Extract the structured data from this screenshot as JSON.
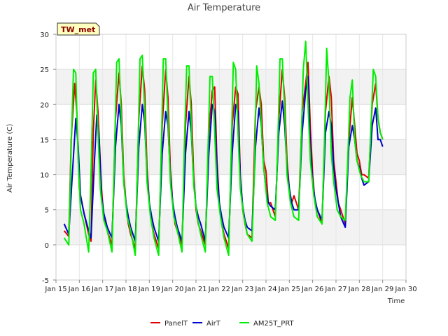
{
  "chart_data": {
    "type": "line",
    "title": "Air Temperature",
    "xlabel": "Time",
    "ylabel": "Air Temperature (C)",
    "station_label": "TW_met",
    "xlim": [
      15,
      30
    ],
    "ylim": [
      -5,
      30
    ],
    "x_ticks": [
      15,
      16,
      17,
      18,
      19,
      20,
      21,
      22,
      23,
      24,
      25,
      26,
      27,
      28,
      29,
      30
    ],
    "x_tick_labels": [
      "Jan 15",
      "Jan 16",
      "Jan 17",
      "Jan 18",
      "Jan 19",
      "Jan 20",
      "Jan 21",
      "Jan 22",
      "Jan 23",
      "Jan 24",
      "Jan 25",
      "Jan 26",
      "Jan 27",
      "Jan 28",
      "Jan 29",
      "Jan 30"
    ],
    "y_ticks": [
      -5,
      0,
      5,
      10,
      15,
      20,
      25,
      30
    ],
    "y_tick_labels": [
      "-5",
      "0",
      "5",
      "10",
      "15",
      "20",
      "25",
      "30"
    ],
    "grid": true,
    "banded_background": true,
    "legend_position": "bottom-center",
    "series": [
      {
        "name": "PanelT",
        "color": "#dd0000",
        "x": [
          15.35,
          15.55,
          15.65,
          15.8,
          15.9,
          16.0,
          16.2,
          16.4,
          16.5,
          16.6,
          16.7,
          16.8,
          16.95,
          17.05,
          17.2,
          17.4,
          17.55,
          17.7,
          17.8,
          17.9,
          18.0,
          18.1,
          18.2,
          18.4,
          18.55,
          18.7,
          18.8,
          18.9,
          19.0,
          19.1,
          19.2,
          19.4,
          19.55,
          19.7,
          19.8,
          19.9,
          20.0,
          20.1,
          20.2,
          20.4,
          20.55,
          20.7,
          20.8,
          20.9,
          21.0,
          21.1,
          21.2,
          21.4,
          21.55,
          21.7,
          21.8,
          21.9,
          22.0,
          22.1,
          22.2,
          22.4,
          22.55,
          22.7,
          22.8,
          22.9,
          23.0,
          23.1,
          23.2,
          23.4,
          23.55,
          23.7,
          23.8,
          23.9,
          24.0,
          24.1,
          24.2,
          24.4,
          24.55,
          24.7,
          24.8,
          24.9,
          25.0,
          25.1,
          25.2,
          25.4,
          25.55,
          25.7,
          25.8,
          25.9,
          26.0,
          26.1,
          26.2,
          26.4,
          26.55,
          26.7,
          26.8,
          26.9,
          27.0,
          27.1,
          27.2,
          27.4,
          27.55,
          27.7,
          27.8,
          27.9,
          28.0,
          28.1,
          28.2,
          28.4,
          28.55,
          28.7,
          28.8,
          28.9,
          29.0
        ],
        "y": [
          2.0,
          1.2,
          15.0,
          23.0,
          18.5,
          8.0,
          4.5,
          1.5,
          0.5,
          16.0,
          23.5,
          19.0,
          8.0,
          4.0,
          2.0,
          0.0,
          18.0,
          24.5,
          20.0,
          10.0,
          6.0,
          3.0,
          1.5,
          -0.5,
          18.0,
          25.5,
          22.0,
          11.0,
          6.0,
          3.0,
          1.5,
          -0.5,
          17.0,
          25.0,
          21.0,
          11.0,
          6.0,
          3.0,
          2.0,
          0.0,
          17.0,
          24.0,
          20.0,
          10.0,
          5.0,
          3.0,
          2.0,
          0.0,
          16.0,
          22.0,
          22.5,
          12.0,
          6.0,
          3.0,
          1.5,
          -0.5,
          17.0,
          22.5,
          21.5,
          10.0,
          5.0,
          3.0,
          1.5,
          1.0,
          19.0,
          22.5,
          20.0,
          12.0,
          10.5,
          6.0,
          6.0,
          4.0,
          18.0,
          25.0,
          21.0,
          12.0,
          8.0,
          6.0,
          7.0,
          5.0,
          19.0,
          23.0,
          26.0,
          17.0,
          10.0,
          6.0,
          5.0,
          3.0,
          19.0,
          24.0,
          21.0,
          12.0,
          9.0,
          6.0,
          5.0,
          3.0,
          15.0,
          21.0,
          17.0,
          13.0,
          12.0,
          10.0,
          10.0,
          9.5,
          20.0,
          23.0,
          18.0,
          16.0,
          15.0
        ]
      },
      {
        "name": "AirT",
        "color": "#0000cc",
        "x": [
          15.35,
          15.55,
          15.7,
          15.85,
          15.95,
          16.05,
          16.2,
          16.4,
          16.5,
          16.65,
          16.75,
          16.85,
          16.95,
          17.05,
          17.2,
          17.4,
          17.55,
          17.7,
          17.8,
          17.9,
          18.0,
          18.1,
          18.2,
          18.4,
          18.55,
          18.7,
          18.8,
          18.9,
          19.0,
          19.1,
          19.2,
          19.4,
          19.55,
          19.7,
          19.8,
          19.9,
          20.0,
          20.1,
          20.2,
          20.4,
          20.55,
          20.7,
          20.8,
          20.9,
          21.0,
          21.1,
          21.2,
          21.4,
          21.55,
          21.7,
          21.8,
          21.9,
          22.0,
          22.1,
          22.2,
          22.4,
          22.55,
          22.7,
          22.8,
          22.9,
          23.0,
          23.1,
          23.2,
          23.4,
          23.55,
          23.7,
          23.8,
          23.9,
          24.0,
          24.1,
          24.2,
          24.4,
          24.55,
          24.7,
          24.8,
          24.9,
          25.0,
          25.1,
          25.2,
          25.4,
          25.55,
          25.7,
          25.8,
          25.9,
          26.0,
          26.1,
          26.2,
          26.4,
          26.55,
          26.7,
          26.8,
          26.9,
          27.0,
          27.1,
          27.2,
          27.4,
          27.55,
          27.7,
          27.8,
          27.9,
          28.0,
          28.1,
          28.2,
          28.4,
          28.55,
          28.7,
          28.8,
          28.9,
          29.0
        ],
        "y": [
          3.0,
          1.5,
          10.0,
          18.0,
          14.0,
          7.0,
          4.5,
          2.0,
          1.0,
          12.0,
          18.5,
          15.0,
          7.0,
          4.5,
          2.5,
          1.0,
          14.0,
          20.0,
          17.0,
          9.0,
          6.0,
          4.0,
          2.5,
          0.5,
          14.0,
          20.0,
          17.5,
          10.0,
          6.0,
          4.0,
          2.5,
          0.5,
          13.0,
          19.0,
          17.0,
          10.0,
          6.0,
          4.0,
          2.5,
          0.5,
          13.0,
          19.0,
          16.0,
          9.0,
          5.5,
          4.0,
          3.0,
          0.5,
          13.0,
          20.0,
          19.0,
          11.0,
          6.0,
          4.0,
          2.5,
          1.0,
          13.0,
          20.0,
          19.0,
          9.5,
          5.5,
          3.5,
          2.5,
          2.0,
          14.0,
          19.5,
          17.0,
          11.0,
          8.0,
          6.0,
          5.5,
          5.0,
          16.0,
          20.5,
          17.0,
          11.0,
          8.0,
          6.0,
          5.0,
          5.0,
          16.0,
          22.0,
          24.0,
          14.0,
          9.0,
          6.5,
          5.0,
          3.5,
          16.0,
          19.0,
          17.0,
          11.0,
          8.0,
          6.0,
          4.0,
          2.5,
          14.0,
          17.0,
          15.0,
          12.0,
          11.0,
          9.5,
          8.5,
          9.0,
          17.0,
          19.5,
          15.0,
          15.0,
          14.0
        ]
      },
      {
        "name": "AM25T_PRT",
        "color": "#00ee00",
        "x": [
          15.35,
          15.55,
          15.65,
          15.75,
          15.85,
          15.95,
          16.05,
          16.2,
          16.4,
          16.5,
          16.6,
          16.7,
          16.8,
          16.9,
          17.05,
          17.2,
          17.4,
          17.5,
          17.6,
          17.7,
          17.8,
          17.9,
          18.05,
          18.2,
          18.4,
          18.5,
          18.6,
          18.7,
          18.8,
          18.9,
          19.05,
          19.2,
          19.4,
          19.5,
          19.6,
          19.7,
          19.8,
          19.9,
          20.05,
          20.2,
          20.4,
          20.5,
          20.6,
          20.7,
          20.8,
          20.9,
          21.05,
          21.2,
          21.4,
          21.5,
          21.6,
          21.7,
          21.8,
          21.9,
          22.05,
          22.2,
          22.4,
          22.5,
          22.6,
          22.7,
          22.8,
          22.9,
          23.05,
          23.2,
          23.4,
          23.5,
          23.6,
          23.7,
          23.8,
          23.9,
          24.05,
          24.2,
          24.4,
          24.5,
          24.6,
          24.7,
          24.8,
          24.9,
          25.05,
          25.2,
          25.4,
          25.5,
          25.6,
          25.7,
          25.8,
          25.9,
          26.05,
          26.2,
          26.4,
          26.5,
          26.6,
          26.7,
          26.8,
          26.9,
          27.05,
          27.2,
          27.4,
          27.5,
          27.6,
          27.7,
          27.8,
          27.9,
          28.05,
          28.2,
          28.4,
          28.5,
          28.6,
          28.7,
          28.8,
          28.9,
          29.0
        ],
        "y": [
          1.0,
          0.0,
          14.0,
          25.0,
          24.5,
          12.0,
          5.0,
          3.0,
          -1.0,
          10.0,
          24.5,
          25.0,
          16.0,
          8.0,
          3.5,
          2.0,
          -1.0,
          12.0,
          26.0,
          26.5,
          18.0,
          9.0,
          4.0,
          2.0,
          -1.5,
          12.0,
          26.5,
          27.0,
          19.0,
          9.0,
          4.0,
          1.0,
          -1.5,
          12.0,
          26.5,
          26.5,
          18.0,
          9.0,
          4.0,
          2.0,
          -1.0,
          14.0,
          25.5,
          25.5,
          17.0,
          8.5,
          4.0,
          1.5,
          -1.0,
          12.0,
          24.0,
          24.0,
          16.0,
          8.0,
          4.0,
          1.0,
          -1.5,
          12.0,
          26.0,
          25.0,
          16.0,
          8.0,
          4.0,
          1.5,
          0.5,
          10.0,
          25.5,
          23.0,
          17.0,
          11.0,
          6.0,
          4.0,
          3.5,
          14.0,
          26.5,
          26.5,
          19.0,
          10.0,
          6.0,
          4.0,
          3.5,
          14.0,
          25.0,
          29.0,
          20.0,
          12.0,
          7.0,
          4.0,
          3.0,
          14.0,
          28.0,
          23.0,
          13.0,
          9.0,
          5.0,
          4.0,
          3.5,
          12.0,
          21.0,
          23.5,
          15.0,
          12.0,
          10.0,
          9.0,
          9.0,
          17.0,
          25.0,
          24.0,
          18.0,
          16.0,
          15.0
        ]
      }
    ]
  }
}
